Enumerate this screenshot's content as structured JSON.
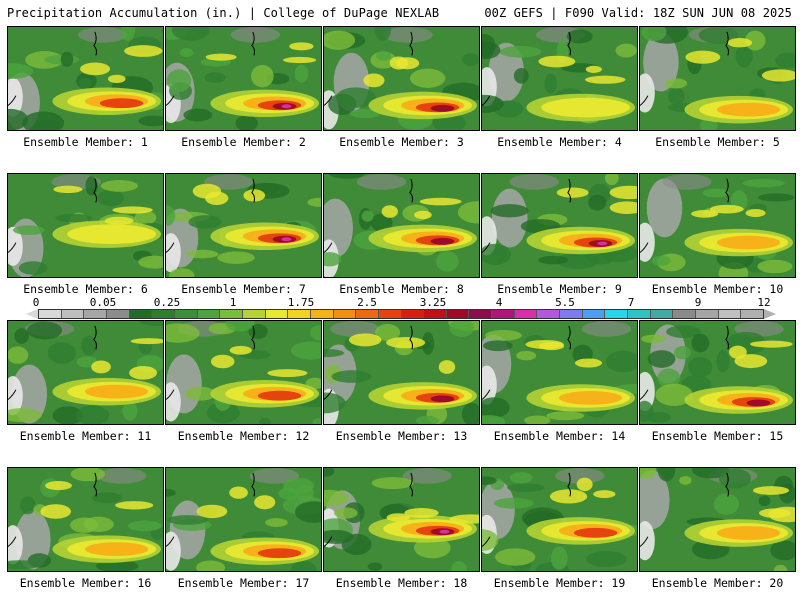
{
  "header": {
    "title": "Precipitation Accumulation (in.) | College of DuPage NEXLAB",
    "run_info": "00Z GEFS | F090 Valid: 18Z SUN JUN 08 2025"
  },
  "members": [
    {
      "label": "Ensemble Member: 1",
      "intensity": 0.7
    },
    {
      "label": "Ensemble Member: 2",
      "intensity": 0.8
    },
    {
      "label": "Ensemble Member: 3",
      "intensity": 0.75
    },
    {
      "label": "Ensemble Member: 4",
      "intensity": 0.3
    },
    {
      "label": "Ensemble Member: 5",
      "intensity": 0.45
    },
    {
      "label": "Ensemble Member: 6",
      "intensity": 0.35
    },
    {
      "label": "Ensemble Member: 7",
      "intensity": 0.85
    },
    {
      "label": "Ensemble Member: 8",
      "intensity": 0.75
    },
    {
      "label": "Ensemble Member: 9",
      "intensity": 0.8
    },
    {
      "label": "Ensemble Member: 10",
      "intensity": 0.55
    },
    {
      "label": "Ensemble Member: 11",
      "intensity": 0.45
    },
    {
      "label": "Ensemble Member: 12",
      "intensity": 0.6
    },
    {
      "label": "Ensemble Member: 13",
      "intensity": 0.75
    },
    {
      "label": "Ensemble Member: 14",
      "intensity": 0.5
    },
    {
      "label": "Ensemble Member: 15",
      "intensity": 0.75
    },
    {
      "label": "Ensemble Member: 16",
      "intensity": 0.5
    },
    {
      "label": "Ensemble Member: 17",
      "intensity": 0.7
    },
    {
      "label": "Ensemble Member: 18",
      "intensity": 0.8
    },
    {
      "label": "Ensemble Member: 19",
      "intensity": 0.7
    },
    {
      "label": "Ensemble Member: 20",
      "intensity": 0.5
    }
  ],
  "colorbar": {
    "ticks": [
      "0",
      "0.05",
      "0.25",
      "1",
      "1.75",
      "2.5",
      "3.25",
      "4",
      "5.5",
      "7",
      "9",
      "12"
    ],
    "colors": [
      "#d9d9d9",
      "#bfbfbf",
      "#a6a6a6",
      "#8c8c8c",
      "#236b27",
      "#2f7d31",
      "#3c8f3a",
      "#4ea43f",
      "#7dbb3a",
      "#b5d334",
      "#e8e830",
      "#f5d21e",
      "#f7b21a",
      "#f58c14",
      "#ee6a12",
      "#e5440f",
      "#d81f14",
      "#c0101c",
      "#a00a28",
      "#8e0c4c",
      "#b0157a",
      "#d92ea8",
      "#b456e0",
      "#7b7cf2",
      "#4f9ef5",
      "#27d6ec",
      "#2ec5c0",
      "#41aaa6",
      "#8a8a8a",
      "#a5a5a5",
      "#c0c0c0",
      "#b0b0b0"
    ]
  }
}
